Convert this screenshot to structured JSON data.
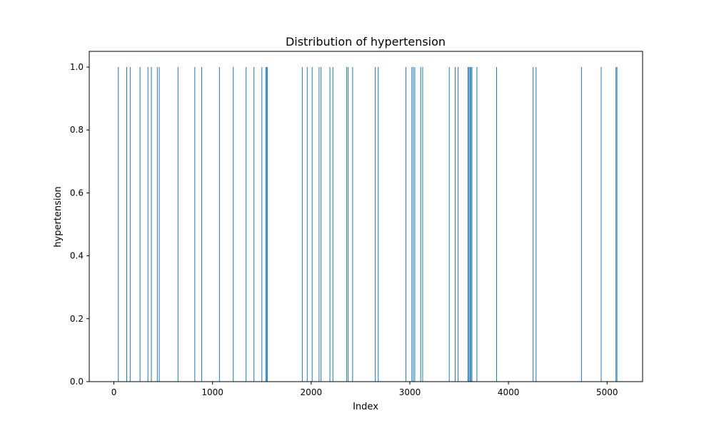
{
  "chart_data": {
    "type": "bar",
    "title": "Distribution of hypertension",
    "xlabel": "Index",
    "ylabel": "hypertension",
    "xlim": [
      -250,
      5360
    ],
    "ylim": [
      0,
      1.05
    ],
    "xticks": [
      0,
      1000,
      2000,
      3000,
      4000,
      5000
    ],
    "xtick_labels": [
      "0",
      "1000",
      "2000",
      "3000",
      "4000",
      "5000"
    ],
    "yticks": [
      0.0,
      0.2,
      0.4,
      0.6,
      0.8,
      1.0
    ],
    "ytick_labels": [
      "0.0",
      "0.2",
      "0.4",
      "0.6",
      "0.8",
      "1.0"
    ],
    "grid": false,
    "legend": "none",
    "bar_color": "#1f77b4",
    "series": [
      {
        "values_y": 1.0,
        "x": [
          45,
          130,
          165,
          265,
          345,
          380,
          440,
          460,
          650,
          820,
          890,
          1070,
          1210,
          1340,
          1420,
          1500,
          1540,
          1550,
          1555,
          1910,
          1960,
          2010,
          2080,
          2100,
          2190,
          2220,
          2360,
          2375,
          2420,
          2650,
          2680,
          2960,
          3020,
          3035,
          3050,
          3110,
          3130,
          3400,
          3460,
          3490,
          3590,
          3600,
          3610,
          3620,
          3630,
          3680,
          3880,
          4250,
          4280,
          4740,
          4940,
          5090,
          5100
        ]
      }
    ]
  }
}
